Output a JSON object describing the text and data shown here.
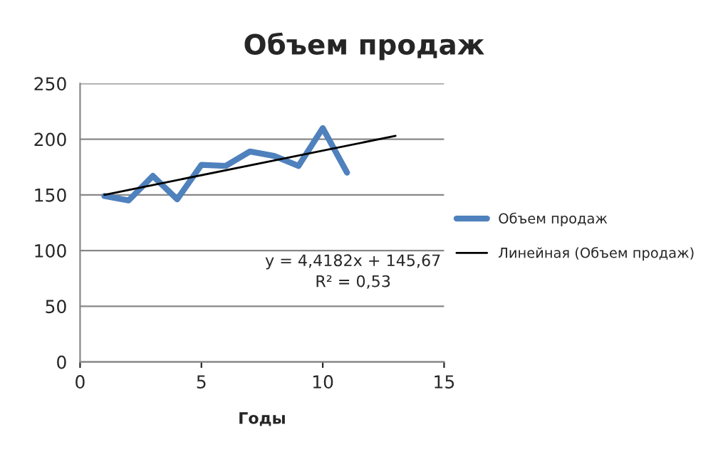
{
  "chart_data": {
    "type": "line",
    "title": "Объем продаж",
    "xlabel": "Годы",
    "series": [
      {
        "name": "Объем продаж",
        "color": "#4f81bd",
        "x": [
          1,
          2,
          3,
          4,
          5,
          6,
          7,
          8,
          9,
          10,
          11
        ],
        "values": [
          149,
          145,
          167,
          146,
          177,
          176,
          189,
          185,
          176,
          210,
          170
        ]
      },
      {
        "name": "Линейная (Объем продаж)",
        "color": "#000000",
        "x": [
          1,
          13
        ],
        "values": [
          150,
          203
        ]
      }
    ],
    "annotations": [
      "y = 4,4182x + 145,67",
      "R² = 0,53"
    ],
    "xlim": [
      0,
      15
    ],
    "xticks": [
      0,
      5,
      10,
      15
    ],
    "ylim": [
      0,
      250
    ],
    "yticks": [
      0,
      50,
      100,
      150,
      200,
      250
    ],
    "grid": "y",
    "legend": "right"
  }
}
